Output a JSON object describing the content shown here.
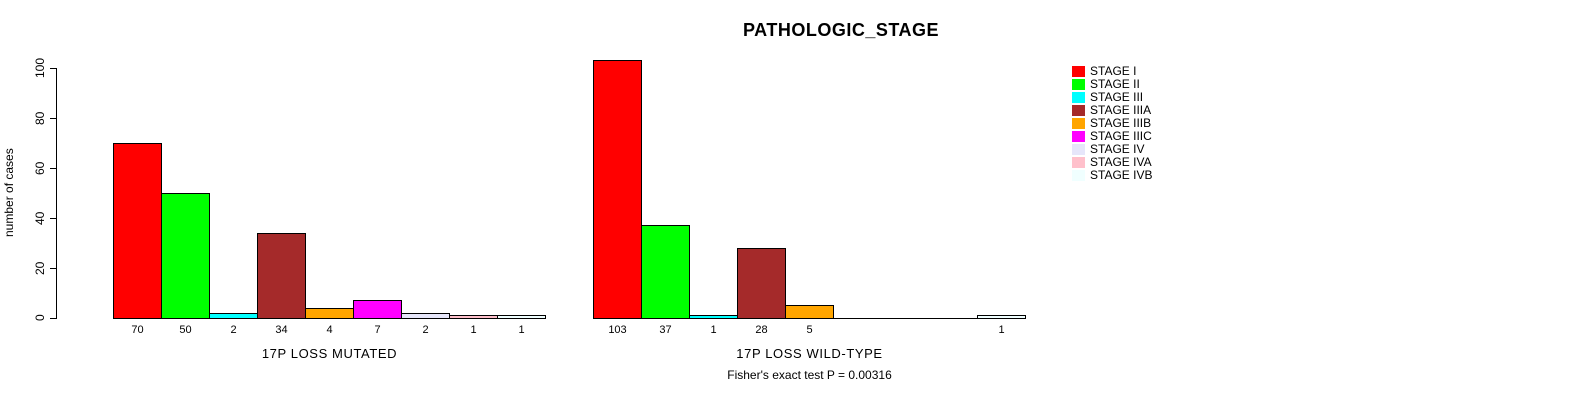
{
  "chart_data": {
    "type": "bar",
    "title": "PATHOLOGIC_STAGE",
    "ylabel": "number of cases",
    "ylim": [
      0,
      100
    ],
    "yticks": [
      0,
      20,
      40,
      60,
      80,
      100
    ],
    "grid": false,
    "legend_position": "right",
    "categories": [
      "STAGE I",
      "STAGE II",
      "STAGE III",
      "STAGE IIIA",
      "STAGE IIIB",
      "STAGE IIIC",
      "STAGE IV",
      "STAGE IVA",
      "STAGE IVB"
    ],
    "palette": [
      "#FF0000",
      "#00FF00",
      "#00FFFF",
      "#A52A2A",
      "#FFA500",
      "#FF00FF",
      "#E6E6FA",
      "#FFC0CB",
      "#F0FFFF"
    ],
    "groups": [
      {
        "xlabel": "17P LOSS MUTATED",
        "values": [
          70,
          50,
          2,
          34,
          4,
          7,
          2,
          1,
          1
        ]
      },
      {
        "xlabel": "17P LOSS WILD-TYPE",
        "values": [
          103,
          37,
          1,
          28,
          5,
          0,
          0,
          0,
          1
        ]
      }
    ],
    "annotation": "Fisher's exact test P = 0.00316",
    "bar_outline_color": "#000000",
    "background_color": "#FFFFFF"
  }
}
